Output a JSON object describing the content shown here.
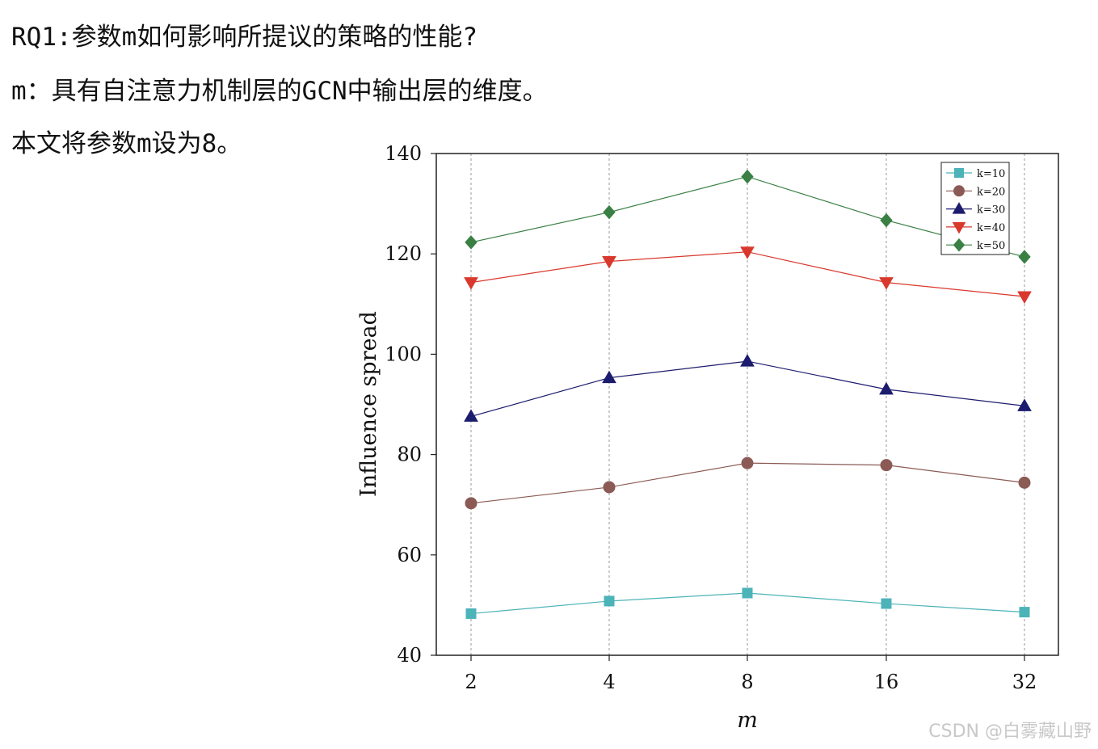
{
  "text": {
    "line1": "RQ1:参数m如何影响所提议的策略的性能?",
    "line2": "m：具有自注意力机制层的GCN中输出层的维度。",
    "line3": "本文将参数m设为8。"
  },
  "watermark": "CSDN @白雾藏山野",
  "chart_data": {
    "type": "line",
    "categories": [
      "2",
      "4",
      "8",
      "16",
      "32"
    ],
    "xlabel": "m",
    "ylabel": "Influence spread",
    "ylim": [
      40,
      140
    ],
    "yticks": [
      40,
      60,
      80,
      100,
      120,
      140
    ],
    "grid": "vertical dashed at each category",
    "legend_position": "top-right",
    "series": [
      {
        "name": "k=10",
        "color": "#4cb3b8",
        "marker": "square",
        "values": [
          48.3,
          50.8,
          52.4,
          50.3,
          48.6
        ]
      },
      {
        "name": "k=20",
        "color": "#8b5a55",
        "marker": "circle",
        "values": [
          70.3,
          73.5,
          78.3,
          77.9,
          74.4
        ]
      },
      {
        "name": "k=30",
        "color": "#1c1c6e",
        "marker": "triangle-up",
        "values": [
          87.6,
          95.3,
          98.6,
          93.0,
          89.7
        ]
      },
      {
        "name": "k=40",
        "color": "#d9382c",
        "marker": "triangle-down",
        "values": [
          114.3,
          118.5,
          120.4,
          114.3,
          111.5
        ]
      },
      {
        "name": "k=50",
        "color": "#3a8044",
        "marker": "diamond",
        "values": [
          122.3,
          128.3,
          135.4,
          126.7,
          119.4
        ]
      }
    ]
  }
}
